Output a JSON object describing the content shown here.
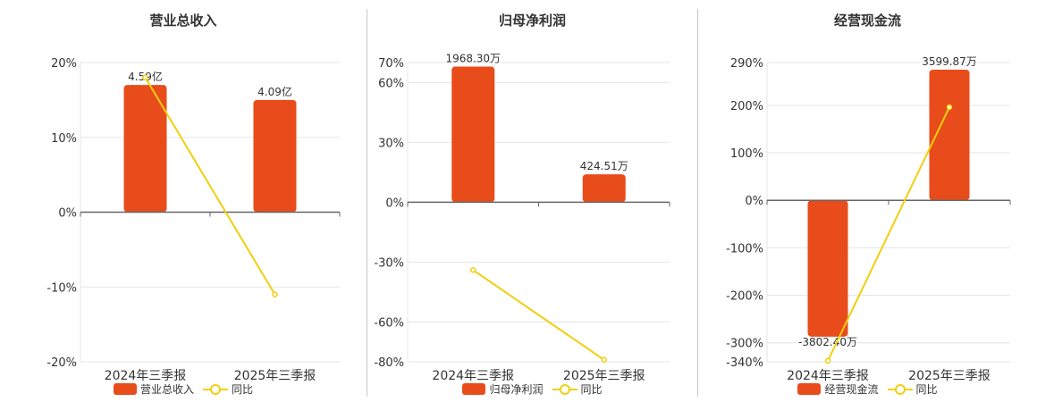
{
  "colors": {
    "bar": "#e84c1b",
    "line": "#f2cf0e",
    "grid": "#e6e6e6",
    "axis": "#666666",
    "text": "#333333"
  },
  "chart_data": [
    {
      "type": "bar",
      "title": "营业总收入",
      "categories": [
        "2024年三季报",
        "2025年三季报"
      ],
      "series": [
        {
          "name": "营业总收入",
          "type": "bar",
          "values": [
            17,
            15
          ],
          "labels": [
            "4.59亿",
            "4.09亿"
          ]
        },
        {
          "name": "同比",
          "type": "line",
          "values": [
            18,
            -11
          ]
        }
      ],
      "ylim": [
        -20,
        20
      ],
      "yticks": [
        20,
        10,
        0,
        -10,
        -20
      ],
      "ytick_labels": [
        "20%",
        "10%",
        "0%",
        "-10%",
        "-20%"
      ],
      "grid": true,
      "legend": "bottom"
    },
    {
      "type": "bar",
      "title": "归母净利润",
      "categories": [
        "2024年三季报",
        "2025年三季报"
      ],
      "series": [
        {
          "name": "归母净利润",
          "type": "bar",
          "values": [
            68,
            14
          ],
          "labels": [
            "1968.30万",
            "424.51万"
          ]
        },
        {
          "name": "同比",
          "type": "line",
          "values": [
            -34,
            -79
          ]
        }
      ],
      "ylim": [
        -80,
        70
      ],
      "yticks": [
        70,
        60,
        30,
        0,
        -30,
        -60,
        -80
      ],
      "ytick_labels": [
        "70%",
        "60%",
        "30%",
        "0%",
        "-30%",
        "-60%",
        "-80%"
      ],
      "grid": true,
      "legend": "bottom"
    },
    {
      "type": "bar",
      "title": "经营现金流",
      "categories": [
        "2024年三季报",
        "2025年三季报"
      ],
      "series": [
        {
          "name": "经营现金流",
          "type": "bar",
          "values": [
            -287,
            275
          ],
          "labels": [
            "-3802.40万",
            "3599.87万"
          ]
        },
        {
          "name": "同比",
          "type": "line",
          "values": [
            -338,
            196
          ]
        }
      ],
      "ylim": [
        -340,
        290
      ],
      "yticks": [
        290,
        200,
        100,
        0,
        -100,
        -200,
        -300,
        -340
      ],
      "ytick_labels": [
        "290%",
        "200%",
        "100%",
        "0%",
        "-100%",
        "-200%",
        "-300%",
        "-340%"
      ],
      "grid": true,
      "legend": "bottom"
    }
  ]
}
